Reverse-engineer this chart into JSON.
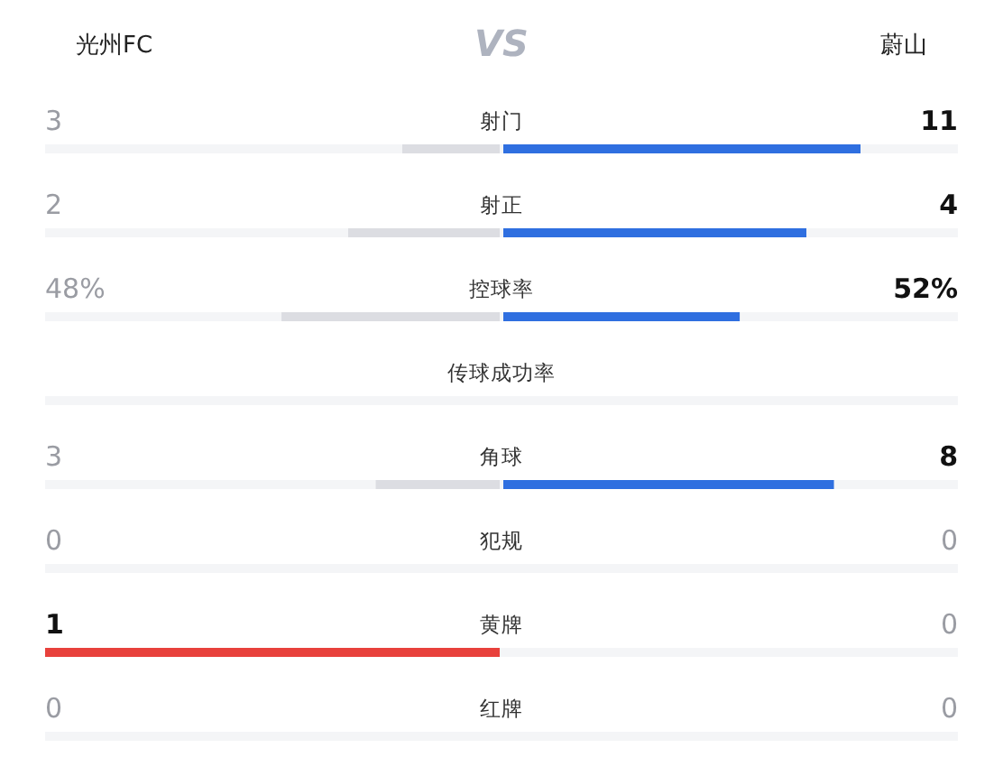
{
  "chart_data": {
    "type": "other",
    "categories": [
      "射门",
      "射正",
      "控球率",
      "传球成功率",
      "角球",
      "犯规",
      "黄牌",
      "红牌"
    ],
    "series": [
      {
        "name": "光州FC",
        "values": [
          3,
          2,
          48,
          null,
          3,
          0,
          1,
          0
        ],
        "value_labels": [
          "3",
          "2",
          "48%",
          null,
          "3",
          "0",
          "1",
          "0"
        ],
        "colors": [
          "#dcdde2",
          "#dcdde2",
          "#dcdde2",
          null,
          "#dcdde2",
          null,
          "#e8413c",
          null
        ]
      },
      {
        "name": "蔚山",
        "values": [
          11,
          4,
          52,
          null,
          8,
          0,
          0,
          0
        ],
        "value_labels": [
          "11",
          "4",
          "52%",
          null,
          "8",
          "0",
          "0",
          "0"
        ],
        "colors": [
          "#2f6fe0",
          "#2f6fe0",
          "#2f6fe0",
          null,
          "#2f6fe0",
          null,
          null,
          null
        ]
      }
    ],
    "annotations": [
      "VS"
    ]
  }
}
